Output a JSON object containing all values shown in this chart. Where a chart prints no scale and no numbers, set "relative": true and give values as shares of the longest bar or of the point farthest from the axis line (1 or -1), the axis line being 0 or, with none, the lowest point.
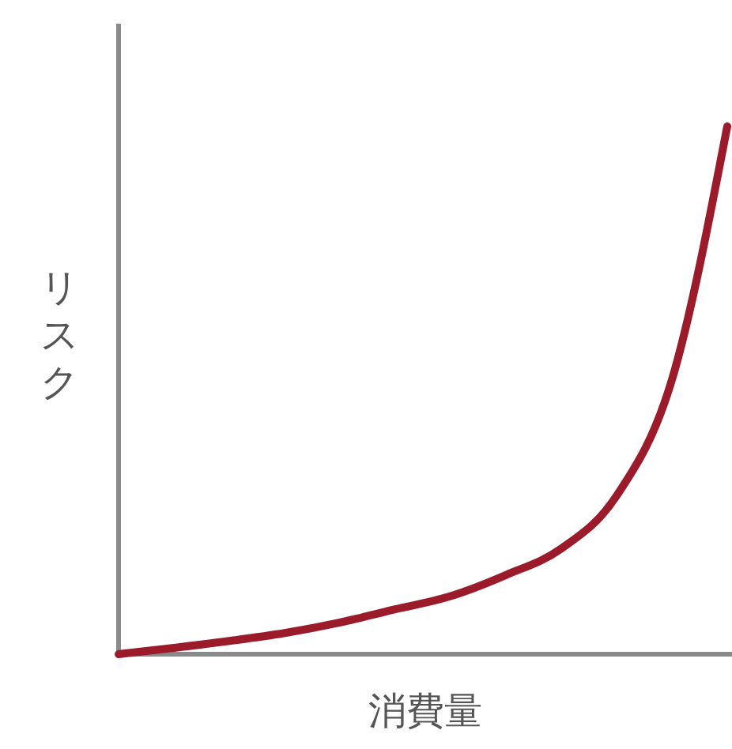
{
  "chart_data": {
    "type": "line",
    "relative": true,
    "xlabel": "消費量",
    "ylabel": "リスク",
    "categories": [
      null,
      null,
      null,
      null,
      null,
      null,
      null,
      null,
      null,
      null,
      null,
      null
    ],
    "series": [
      {
        "color": "#9b1b2a",
        "values": [
          0,
          0.012,
          0.025,
          0.04,
          0.06,
          0.085,
          0.11,
          0.15,
          0.2,
          0.3,
          0.52,
          1
        ]
      }
    ],
    "marker": "none",
    "line_style": "solid"
  }
}
